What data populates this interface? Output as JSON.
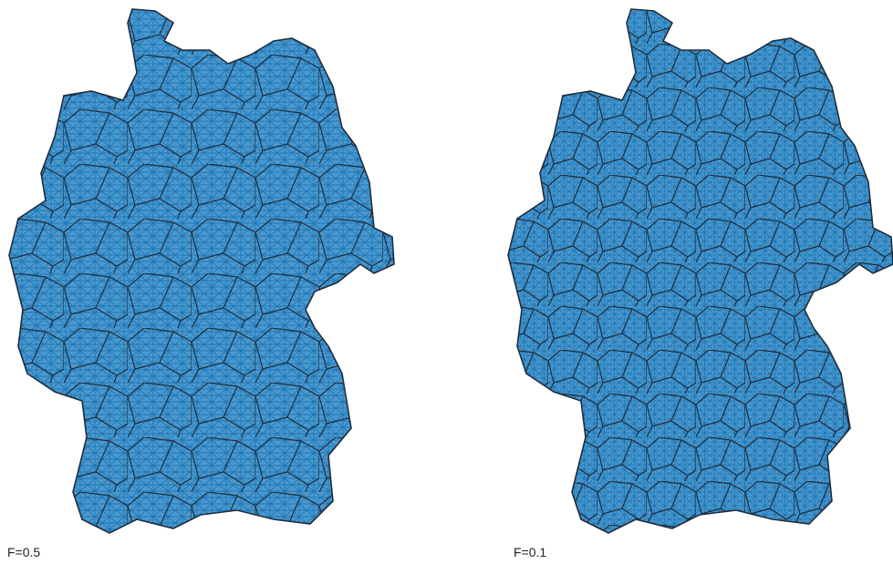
{
  "panels": [
    {
      "label": "F=0.5"
    },
    {
      "label": "F=0.1"
    }
  ]
}
